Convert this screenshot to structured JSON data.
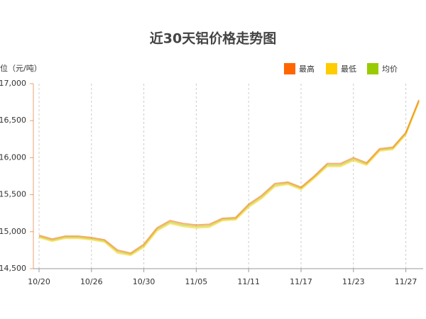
{
  "chart_data": {
    "type": "line",
    "title": "近30天铝价格走势图",
    "y_label": "单位（元/吨）",
    "categories": [
      "10/20",
      null,
      null,
      null,
      "10/26",
      null,
      null,
      null,
      "10/30",
      null,
      null,
      null,
      "11/05",
      null,
      null,
      null,
      "11/11",
      null,
      null,
      null,
      "11/17",
      null,
      null,
      null,
      "11/23",
      null,
      null,
      null,
      "11/27",
      null
    ],
    "series": [
      {
        "name": "最高",
        "color": "#ff6600",
        "values": [
          14950,
          14900,
          14940,
          14940,
          14920,
          14890,
          14750,
          14710,
          14830,
          15050,
          15150,
          15110,
          15090,
          15100,
          15180,
          15190,
          15370,
          15490,
          15650,
          15670,
          15600,
          15750,
          15920,
          15920,
          16000,
          15930,
          16120,
          16140,
          16340,
          16780
        ]
      },
      {
        "name": "最低",
        "color": "#ffcc00",
        "values": [
          14920,
          14870,
          14910,
          14910,
          14890,
          14860,
          14710,
          14680,
          14790,
          15010,
          15110,
          15070,
          15050,
          15060,
          15150,
          15160,
          15330,
          15450,
          15610,
          15640,
          15570,
          15720,
          15880,
          15880,
          15960,
          15900,
          16090,
          16110,
          16310,
          16750
        ]
      },
      {
        "name": "均价",
        "color": "#99cc00",
        "values": [
          14935,
          14885,
          14925,
          14925,
          14905,
          14875,
          14730,
          14695,
          14810,
          15030,
          15130,
          15090,
          15070,
          15080,
          15165,
          15175,
          15350,
          15470,
          15630,
          15655,
          15585,
          15735,
          15900,
          15900,
          15980,
          15915,
          16105,
          16125,
          16325,
          16765
        ]
      }
    ],
    "ylim": [
      14500,
      17000
    ],
    "yticks": [
      {
        "value": 14500,
        "label": "14,500"
      },
      {
        "value": 15000,
        "label": "15,000"
      },
      {
        "value": 15500,
        "label": "15,500"
      },
      {
        "value": 16000,
        "label": "16,000"
      },
      {
        "value": 16500,
        "label": "16,500"
      },
      {
        "value": 17000,
        "label": "17,000"
      }
    ],
    "grid": true,
    "legend": "top-right"
  }
}
